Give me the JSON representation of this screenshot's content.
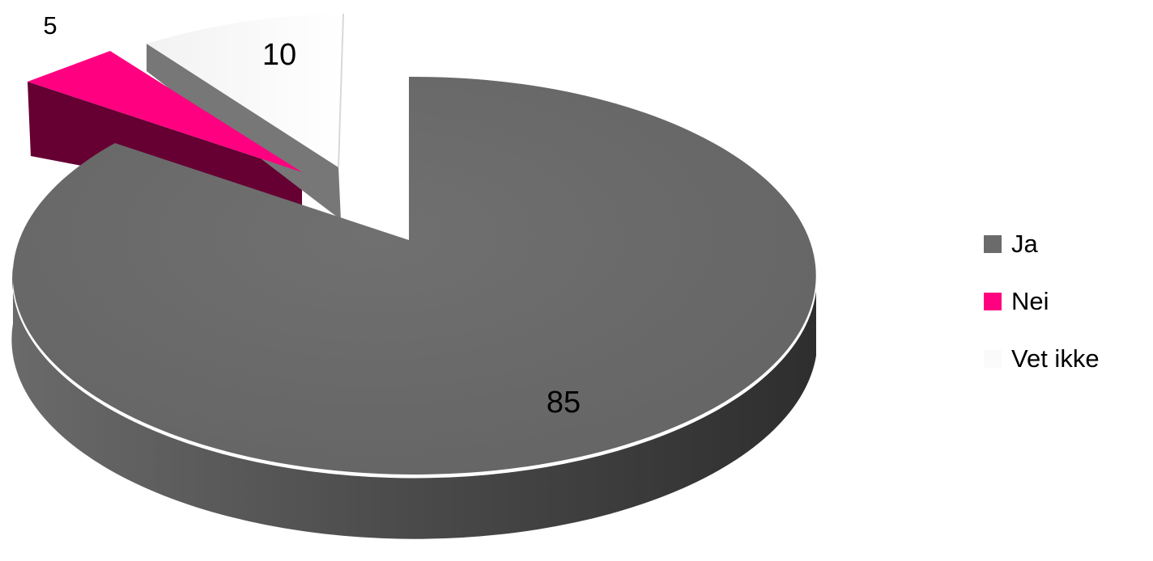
{
  "chart_data": {
    "type": "pie",
    "title": "",
    "categories": [
      "Ja",
      "Nei",
      "Vet ikke"
    ],
    "values": [
      85,
      5,
      10
    ],
    "colors": [
      "#6b6b6b",
      "#ff0080",
      "#fafafa"
    ],
    "side_colors": [
      "#555555",
      "#660033",
      "#777777"
    ],
    "exploded": [
      false,
      true,
      true
    ],
    "three_d": true,
    "legend_position": "right"
  }
}
